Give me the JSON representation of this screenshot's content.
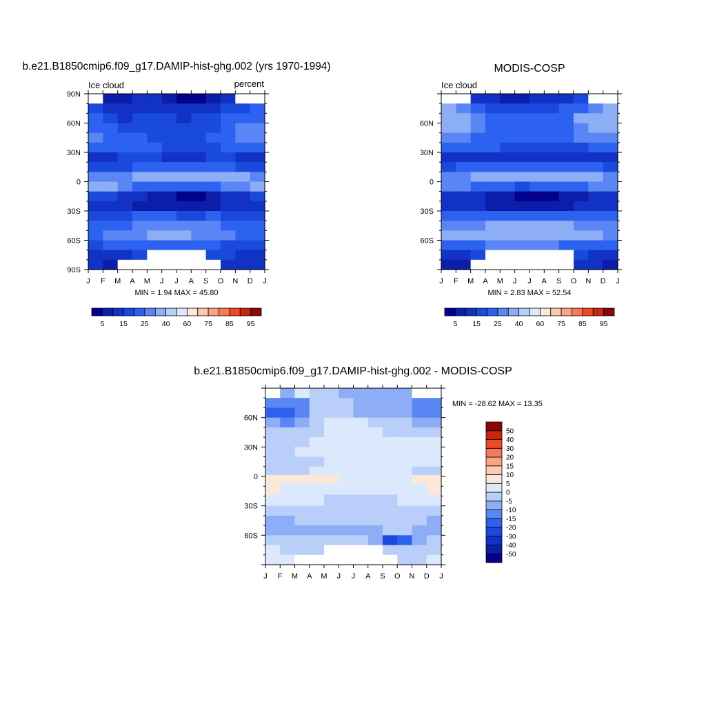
{
  "page": {
    "panel_left_title": "b.e21.B1850cmip6.f09_g17.DAMIP-hist-ghg.002 (yrs 1970-1994)",
    "panel_right_title": "MODIS-COSP",
    "panel_diff_title": "b.e21.B1850cmip6.f09_g17.DAMIP-hist-ghg.002 - MODIS-COSP"
  },
  "chart_data": [
    {
      "type": "heatmap",
      "id": "model",
      "title": "b.e21.B1850cmip6.f09_g17.DAMIP-hist-ghg.002 (yrs 1970-1994)",
      "left_label": "Ice cloud",
      "right_label": "percent",
      "x_ticks": [
        "J",
        "F",
        "M",
        "A",
        "M",
        "J",
        "J",
        "A",
        "S",
        "O",
        "N",
        "D",
        "J"
      ],
      "y_ticks": [
        "90N",
        "60N",
        "30N",
        "0",
        "30S",
        "60S",
        "90S"
      ],
      "ylim": [
        -90,
        90
      ],
      "stats": "MIN =   1.94 MAX =  45.80",
      "colorbar": {
        "orientation": "horizontal",
        "levels": [
          5,
          10,
          15,
          20,
          25,
          30,
          40,
          50,
          60,
          70,
          75,
          80,
          85,
          90,
          95
        ],
        "tick_labels": [
          "5",
          "15",
          "25",
          "40",
          "60",
          "75",
          "85",
          "95"
        ],
        "colors": [
          "#03008b",
          "#0c1ea9",
          "#1132c4",
          "#1a49de",
          "#2d62f0",
          "#5a86f5",
          "#8eadf7",
          "#b9cffa",
          "#dce8fc",
          "#fde7d9",
          "#fccab2",
          "#f9a583",
          "#f57a55",
          "#ef4a24",
          "#c8270d",
          "#8c0606"
        ]
      },
      "rows": [
        {
          "lat": 85,
          "values": [
            null,
            5,
            8,
            10,
            10,
            6,
            3,
            4,
            7,
            11,
            null,
            null
          ]
        },
        {
          "lat": 75,
          "values": [
            17,
            13,
            11,
            13,
            14,
            12,
            10,
            11,
            13,
            16,
            18,
            20
          ]
        },
        {
          "lat": 65,
          "values": [
            20,
            16,
            14,
            16,
            17,
            15,
            14,
            15,
            17,
            21,
            22,
            24
          ]
        },
        {
          "lat": 55,
          "values": [
            24,
            20,
            17,
            18,
            18,
            17,
            16,
            17,
            19,
            24,
            26,
            25
          ]
        },
        {
          "lat": 45,
          "values": [
            26,
            23,
            20,
            20,
            19,
            18,
            18,
            19,
            20,
            24,
            25,
            26
          ]
        },
        {
          "lat": 35,
          "values": [
            20,
            21,
            22,
            22,
            20,
            19,
            18,
            18,
            19,
            20,
            21,
            20
          ]
        },
        {
          "lat": 25,
          "values": [
            11,
            12,
            15,
            18,
            17,
            14,
            13,
            13,
            15,
            16,
            14,
            12
          ]
        },
        {
          "lat": 15,
          "values": [
            15,
            17,
            19,
            21,
            22,
            20,
            21,
            23,
            23,
            21,
            19,
            17
          ]
        },
        {
          "lat": 5,
          "values": [
            26,
            27,
            29,
            32,
            35,
            36,
            37,
            37,
            36,
            33,
            30,
            28
          ]
        },
        {
          "lat": -5,
          "values": [
            31,
            30,
            27,
            24,
            22,
            21,
            22,
            22,
            24,
            26,
            28,
            30
          ]
        },
        {
          "lat": -15,
          "values": [
            18,
            17,
            14,
            11,
            8,
            5,
            3,
            4,
            7,
            11,
            14,
            16
          ]
        },
        {
          "lat": -25,
          "values": [
            12,
            11,
            10,
            9,
            8,
            6,
            5,
            6,
            8,
            10,
            11,
            12
          ]
        },
        {
          "lat": -35,
          "values": [
            16,
            17,
            19,
            20,
            21,
            20,
            19,
            19,
            20,
            19,
            18,
            17
          ]
        },
        {
          "lat": -45,
          "values": [
            21,
            22,
            24,
            26,
            27,
            28,
            28,
            27,
            26,
            24,
            22,
            21
          ]
        },
        {
          "lat": -55,
          "values": [
            24,
            25,
            26,
            28,
            30,
            30,
            30,
            29,
            27,
            25,
            24,
            23
          ]
        },
        {
          "lat": -65,
          "values": [
            19,
            20,
            21,
            22,
            23,
            24,
            24,
            23,
            21,
            19,
            18,
            17
          ]
        },
        {
          "lat": -75,
          "values": [
            14,
            13,
            14,
            15,
            null,
            null,
            null,
            null,
            16,
            15,
            13,
            12
          ]
        },
        {
          "lat": -85,
          "values": [
            10,
            9,
            null,
            null,
            null,
            null,
            null,
            null,
            null,
            14,
            12,
            10
          ]
        }
      ]
    },
    {
      "type": "heatmap",
      "id": "obs",
      "title": "MODIS-COSP",
      "left_label": "Ice cloud",
      "right_label": "",
      "x_ticks": [
        "J",
        "F",
        "M",
        "A",
        "M",
        "J",
        "J",
        "A",
        "S",
        "O",
        "N",
        "D",
        "J"
      ],
      "y_ticks": [
        "60N",
        "30N",
        "0",
        "30S",
        "60S"
      ],
      "ylim": [
        -90,
        90
      ],
      "stats": "MIN =   2.83 MAX =  52.54",
      "colorbar": {
        "orientation": "horizontal",
        "levels": [
          5,
          10,
          15,
          20,
          25,
          30,
          40,
          50,
          60,
          70,
          75,
          80,
          85,
          90,
          95
        ],
        "tick_labels": [
          "5",
          "15",
          "25",
          "40",
          "60",
          "75",
          "85",
          "95"
        ],
        "colors": [
          "#03008b",
          "#0c1ea9",
          "#1132c4",
          "#1a49de",
          "#2d62f0",
          "#5a86f5",
          "#8eadf7",
          "#b9cffa",
          "#dce8fc",
          "#fde7d9",
          "#fccab2",
          "#f9a583",
          "#f57a55",
          "#ef4a24",
          "#c8270d",
          "#8c0606"
        ]
      },
      "rows": [
        {
          "lat": 85,
          "values": [
            null,
            null,
            12,
            10,
            6,
            9,
            11,
            12,
            14,
            17,
            null,
            null
          ]
        },
        {
          "lat": 75,
          "values": [
            30,
            27,
            22,
            17,
            16,
            17,
            18,
            19,
            20,
            24,
            29,
            31
          ]
        },
        {
          "lat": 65,
          "values": [
            36,
            33,
            27,
            22,
            21,
            22,
            22,
            22,
            24,
            30,
            34,
            36
          ]
        },
        {
          "lat": 55,
          "values": [
            34,
            31,
            27,
            24,
            23,
            22,
            21,
            22,
            24,
            28,
            32,
            34
          ]
        },
        {
          "lat": 45,
          "values": [
            28,
            26,
            24,
            22,
            21,
            20,
            20,
            20,
            22,
            25,
            27,
            28
          ]
        },
        {
          "lat": 35,
          "values": [
            20,
            20,
            20,
            20,
            19,
            18,
            17,
            17,
            18,
            19,
            20,
            20
          ]
        },
        {
          "lat": 25,
          "values": [
            12,
            12,
            13,
            14,
            13,
            12,
            11,
            11,
            12,
            13,
            13,
            12
          ]
        },
        {
          "lat": 15,
          "values": [
            18,
            20,
            22,
            22,
            22,
            22,
            23,
            23,
            23,
            22,
            20,
            18
          ]
        },
        {
          "lat": 5,
          "values": [
            28,
            29,
            30,
            32,
            34,
            35,
            36,
            36,
            35,
            33,
            31,
            29
          ]
        },
        {
          "lat": -5,
          "values": [
            26,
            26,
            24,
            22,
            20,
            19,
            20,
            21,
            22,
            24,
            25,
            26
          ]
        },
        {
          "lat": -15,
          "values": [
            12,
            11,
            10,
            8,
            6,
            4,
            3,
            4,
            6,
            9,
            11,
            12
          ]
        },
        {
          "lat": -25,
          "values": [
            11,
            10,
            10,
            9,
            9,
            8,
            8,
            8,
            9,
            10,
            10,
            11
          ]
        },
        {
          "lat": -35,
          "values": [
            20,
            21,
            22,
            23,
            23,
            22,
            22,
            22,
            22,
            21,
            21,
            20
          ]
        },
        {
          "lat": -45,
          "values": [
            27,
            28,
            29,
            31,
            32,
            33,
            33,
            32,
            30,
            28,
            27,
            27
          ]
        },
        {
          "lat": -55,
          "values": [
            30,
            31,
            32,
            34,
            36,
            37,
            37,
            36,
            33,
            31,
            30,
            29
          ]
        },
        {
          "lat": -65,
          "values": [
            22,
            23,
            24,
            25,
            27,
            28,
            28,
            26,
            24,
            22,
            21,
            21
          ]
        },
        {
          "lat": -75,
          "values": [
            14,
            14,
            15,
            null,
            null,
            null,
            null,
            null,
            null,
            17,
            14,
            13
          ]
        },
        {
          "lat": -85,
          "values": [
            8,
            9,
            null,
            null,
            null,
            null,
            null,
            null,
            null,
            12,
            10,
            8
          ]
        }
      ]
    },
    {
      "type": "heatmap",
      "id": "diff",
      "title": "b.e21.B1850cmip6.f09_g17.DAMIP-hist-ghg.002 - MODIS-COSP",
      "x_ticks": [
        "J",
        "F",
        "M",
        "A",
        "M",
        "J",
        "J",
        "A",
        "S",
        "O",
        "N",
        "D",
        "J"
      ],
      "y_ticks": [
        "60N",
        "30N",
        "0",
        "30S",
        "60S"
      ],
      "ylim": [
        -90,
        90
      ],
      "stats": "MIN = -28.62 MAX =  13.35",
      "colorbar": {
        "orientation": "vertical",
        "levels": [
          -50,
          -40,
          -30,
          -20,
          -15,
          -10,
          -5,
          0,
          5,
          10,
          15,
          20,
          30,
          40,
          50
        ],
        "tick_labels": [
          "-50",
          "-40",
          "-30",
          "-20",
          "-15",
          "-10",
          "-5",
          "0",
          "5",
          "10",
          "15",
          "20",
          "30",
          "40",
          "50"
        ],
        "colors": [
          "#03008b",
          "#0c1ea9",
          "#1132c4",
          "#1a49de",
          "#2d62f0",
          "#5a86f5",
          "#8eadf7",
          "#b9cffa",
          "#dce8fc",
          "#fde7d9",
          "#fccab2",
          "#f9a583",
          "#f57a55",
          "#ef4a24",
          "#c8270d",
          "#8c0606"
        ]
      },
      "rows": [
        {
          "lat": 85,
          "values": [
            null,
            -6,
            2,
            -2,
            -4,
            -6,
            -7,
            -8,
            -7,
            -9,
            null,
            null
          ]
        },
        {
          "lat": 75,
          "values": [
            -13,
            -14,
            -11,
            -4,
            -2,
            -5,
            -8,
            -8,
            -7,
            -8,
            -11,
            -11
          ]
        },
        {
          "lat": 65,
          "values": [
            -16,
            -17,
            -13,
            -4,
            -2,
            -4,
            -6,
            -7,
            -7,
            -9,
            -12,
            -12
          ]
        },
        {
          "lat": 55,
          "values": [
            -10,
            -11,
            -8,
            -4,
            1,
            2,
            1,
            -2,
            -4,
            -5,
            -6,
            -9
          ]
        },
        {
          "lat": 45,
          "values": [
            -3,
            -3,
            -4,
            -2,
            2,
            4,
            4,
            2,
            -1,
            -1,
            -2,
            -2
          ]
        },
        {
          "lat": 35,
          "values": [
            -2,
            -1,
            -3,
            2,
            3,
            3,
            2,
            2,
            1,
            1,
            1,
            0
          ]
        },
        {
          "lat": 25,
          "values": [
            -1,
            -1,
            1,
            3,
            4,
            3,
            3,
            3,
            4,
            3,
            1,
            0
          ]
        },
        {
          "lat": 15,
          "values": [
            -4,
            -3,
            -2,
            -1,
            1,
            1,
            1,
            1,
            1,
            2,
            1,
            0
          ]
        },
        {
          "lat": 5,
          "values": [
            -2,
            -2,
            -1,
            0,
            1,
            1,
            1,
            1,
            1,
            0,
            -1,
            -1
          ]
        },
        {
          "lat": -2,
          "values": [
            6,
            7,
            8,
            8,
            6,
            3,
            1,
            1,
            2,
            3,
            5,
            6
          ]
        },
        {
          "lat": -12,
          "values": [
            5,
            4,
            3,
            2,
            1,
            1,
            0,
            0,
            2,
            3,
            4,
            5
          ]
        },
        {
          "lat": -25,
          "values": [
            1,
            1,
            1,
            0,
            -1,
            -2,
            -2,
            -2,
            -1,
            0,
            1,
            1
          ]
        },
        {
          "lat": -35,
          "values": [
            -4,
            -5,
            -4,
            -3,
            -2,
            -2,
            -3,
            -3,
            -2,
            -2,
            -3,
            -3
          ]
        },
        {
          "lat": -45,
          "values": [
            -6,
            -6,
            -5,
            -5,
            -5,
            -5,
            -4,
            -4,
            -4,
            -4,
            -5,
            -6
          ]
        },
        {
          "lat": -55,
          "values": [
            -7,
            -6,
            -6,
            -6,
            -6,
            -7,
            -7,
            -7,
            -5,
            -4,
            -6,
            -6
          ]
        },
        {
          "lat": -65,
          "values": [
            -4,
            -4,
            -3,
            -3,
            -4,
            -4,
            -4,
            -8,
            -22,
            -16,
            -6,
            -4
          ]
        },
        {
          "lat": -75,
          "values": [
            0,
            -2,
            -3,
            -2,
            null,
            null,
            null,
            null,
            -4,
            -1,
            -1,
            -2
          ]
        },
        {
          "lat": -85,
          "values": [
            2,
            1,
            null,
            null,
            null,
            null,
            null,
            null,
            null,
            -2,
            -1,
            0
          ]
        }
      ]
    }
  ]
}
